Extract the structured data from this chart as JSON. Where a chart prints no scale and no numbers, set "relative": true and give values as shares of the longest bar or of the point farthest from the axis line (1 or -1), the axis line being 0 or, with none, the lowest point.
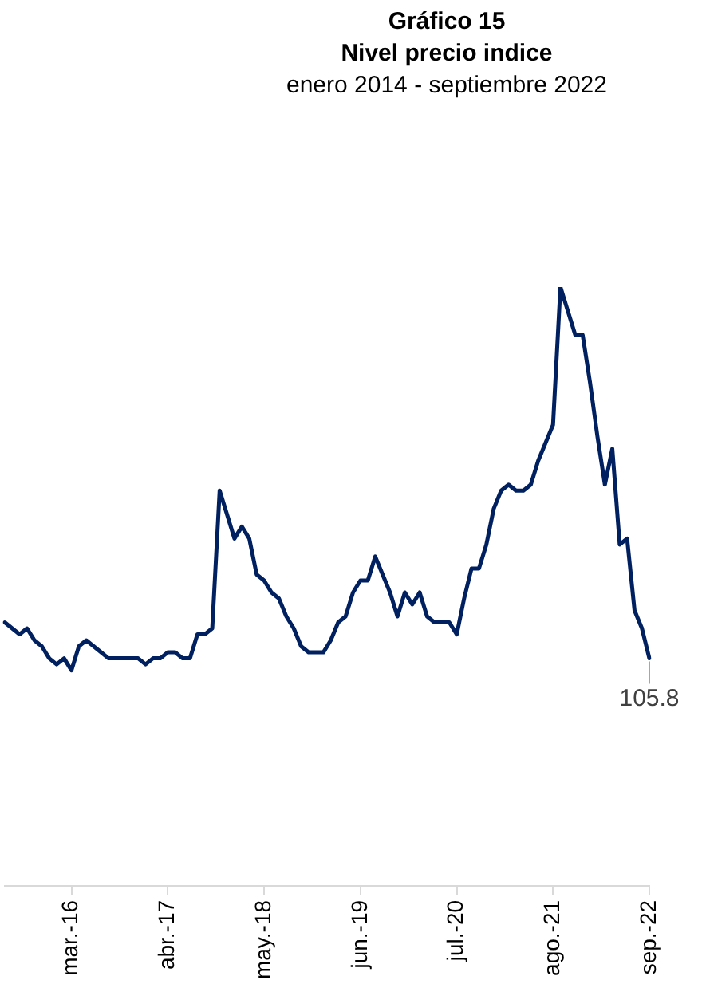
{
  "chart_data": {
    "type": "line",
    "title": "Gráfico 15\nNivel precio indice",
    "subtitle": "enero 2014 - septiembre 2022",
    "relative": true,
    "grid": false,
    "legend": false,
    "categories": [
      null,
      null,
      null,
      null,
      null,
      null,
      null,
      null,
      null,
      "mar.-16",
      null,
      null,
      null,
      null,
      null,
      null,
      null,
      null,
      null,
      null,
      null,
      null,
      "abr.-17",
      null,
      null,
      null,
      null,
      null,
      null,
      null,
      null,
      null,
      null,
      null,
      null,
      "may.-18",
      null,
      null,
      null,
      null,
      null,
      null,
      null,
      null,
      null,
      null,
      null,
      null,
      "jun.-19",
      null,
      null,
      null,
      null,
      null,
      null,
      null,
      null,
      null,
      null,
      null,
      null,
      "jul.-20",
      null,
      null,
      null,
      null,
      null,
      null,
      null,
      null,
      null,
      null,
      null,
      null,
      "ago.-21",
      null,
      null,
      null,
      null,
      null,
      null,
      null,
      null,
      null,
      null,
      null,
      null,
      "sep.-22"
    ],
    "series": [
      {
        "color": "#002060",
        "values": [
          0.44,
          0.43,
          0.42,
          0.43,
          0.41,
          0.4,
          0.38,
          0.37,
          0.38,
          0.36,
          0.4,
          0.41,
          0.4,
          0.39,
          0.38,
          0.38,
          0.38,
          0.38,
          0.38,
          0.37,
          0.38,
          0.38,
          0.39,
          0.39,
          0.38,
          0.38,
          0.42,
          0.42,
          0.43,
          0.66,
          0.62,
          0.58,
          0.6,
          0.58,
          0.52,
          0.51,
          0.49,
          0.48,
          0.45,
          0.43,
          0.4,
          0.39,
          0.39,
          0.39,
          0.41,
          0.44,
          0.45,
          0.49,
          0.51,
          0.51,
          0.55,
          0.52,
          0.49,
          0.45,
          0.49,
          0.47,
          0.49,
          0.45,
          0.44,
          0.44,
          0.44,
          0.42,
          0.48,
          0.53,
          0.53,
          0.57,
          0.63,
          0.66,
          0.67,
          0.66,
          0.66,
          0.67,
          0.71,
          0.74,
          0.77,
          1,
          0.96,
          0.92,
          0.92,
          0.84,
          0.75,
          0.67,
          0.73,
          0.57,
          0.58,
          0.46,
          0.43,
          0.38
        ]
      }
    ],
    "annotations": [
      {
        "text": "105.8",
        "x": "sep.-22"
      }
    ]
  }
}
